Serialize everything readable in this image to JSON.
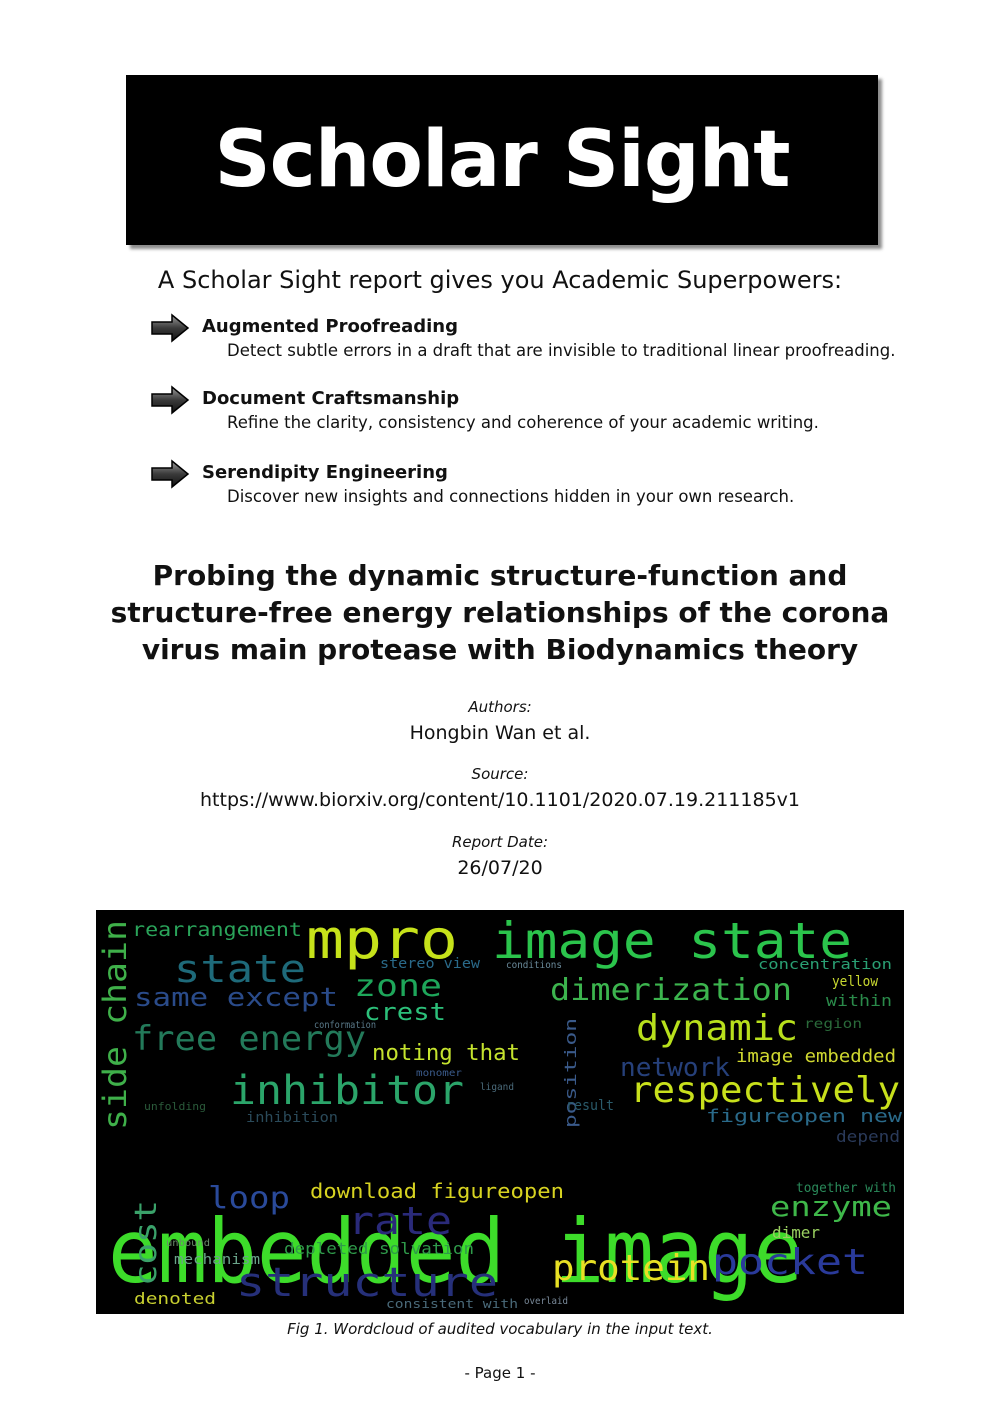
{
  "header": {
    "title": "Scholar Sight"
  },
  "tagline": "A Scholar Sight report gives you Academic Superpowers:",
  "features": [
    {
      "icon": "arrow-right-icon",
      "title": "Augmented Proofreading",
      "description": "Detect subtle errors in a draft that are invisible to traditional linear proofreading."
    },
    {
      "icon": "arrow-right-icon",
      "title": "Document Craftsmanship",
      "description": "Refine the clarity, consistency and coherence of your academic writing."
    },
    {
      "icon": "arrow-right-icon",
      "title": "Serendipity Engineering",
      "description": "Discover new insights and connections hidden in your own research."
    }
  ],
  "paper": {
    "title": "Probing the dynamic structure-function and structure-free energy relationships of the corona virus main protease with Biodynamics theory",
    "authors_label": "Authors:",
    "authors": "Hongbin Wan et al.",
    "source_label": "Source:",
    "source": "https://www.biorxiv.org/content/10.1101/2020.07.19.211185v1",
    "date_label": "Report Date:",
    "date": "26/07/20"
  },
  "wordcloud": {
    "words": [
      "embedded image",
      "mpro",
      "image state",
      "dimerization",
      "dynamic",
      "respectively",
      "inhibitor",
      "free energy",
      "side chain",
      "state",
      "same except",
      "zone",
      "crest",
      "noting that",
      "download figureopen",
      "protein",
      "pocket",
      "structure",
      "rate",
      "loop",
      "cost",
      "enzyme",
      "network",
      "image embedded",
      "rearrangement",
      "concentration",
      "position",
      "depleted solvation",
      "mechanism",
      "denoted",
      "figureopen new",
      "together with",
      "dimer",
      "within",
      "yellow",
      "stereo view",
      "inhibition",
      "depend",
      "result",
      "region",
      "unbound",
      "monomer",
      "ligand",
      "unfolding",
      "conformation",
      "conditions",
      "overlaid",
      "consistent with"
    ]
  },
  "caption": "Fig 1. Wordcloud of audited vocabulary in the input text.",
  "footer": {
    "page": "-  Page 1  -"
  }
}
